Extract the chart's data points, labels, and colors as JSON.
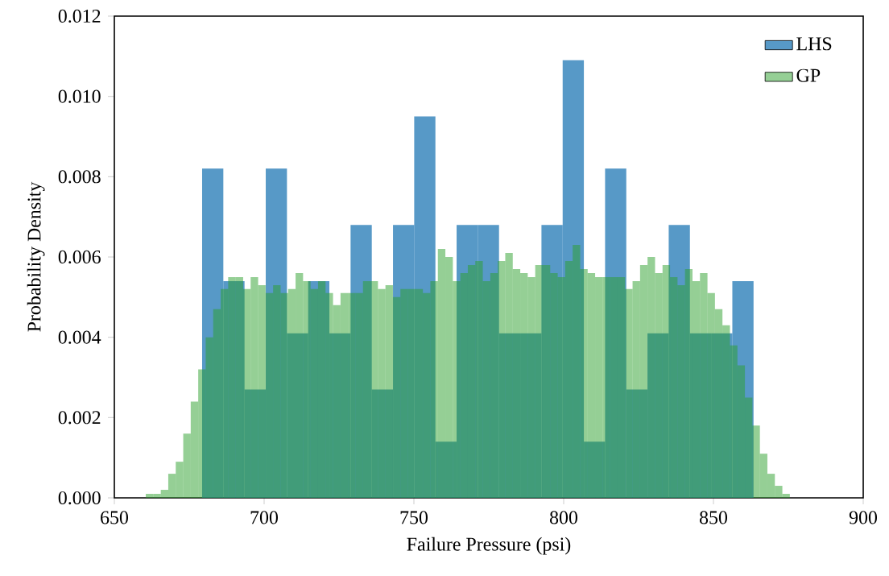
{
  "chart_data": {
    "type": "histogram",
    "xlabel": "Failure Pressure (psi)",
    "ylabel": "Probability Density",
    "xlim": [
      650,
      900
    ],
    "ylim": [
      0,
      0.012
    ],
    "xticks": [
      {
        "value": 650,
        "label": "650"
      },
      {
        "value": 700,
        "label": "700"
      },
      {
        "value": 750,
        "label": "750"
      },
      {
        "value": 800,
        "label": "800"
      },
      {
        "value": 850,
        "label": "850"
      },
      {
        "value": 900,
        "label": "900"
      }
    ],
    "yticks": [
      {
        "value": 0,
        "label": "0.000"
      },
      {
        "value": 0.002,
        "label": "0.002"
      },
      {
        "value": 0.004,
        "label": "0.004"
      },
      {
        "value": 0.006,
        "label": "0.006"
      },
      {
        "value": 0.008,
        "label": "0.008"
      },
      {
        "value": 0.01,
        "label": "0.010"
      },
      {
        "value": 0.012,
        "label": "0.012"
      }
    ],
    "legend": "top right",
    "bins": [
      679.3,
      686.38,
      693.46,
      700.54,
      707.62,
      714.7,
      721.78,
      728.86,
      735.94,
      743.02,
      750.1,
      757.18,
      764.26,
      771.34,
      778.42,
      785.5,
      792.58,
      799.66,
      806.74,
      813.82,
      820.9,
      827.98,
      835.06,
      842.14,
      849.22,
      856.3,
      863.38
    ],
    "series": [
      {
        "name": "LHS",
        "color": "#5799c7",
        "values": [
          0.0082,
          0.0054,
          0.0027,
          0.0082,
          0.0041,
          0.0054,
          0.0041,
          0.0068,
          0.0027,
          0.0068,
          0.0095,
          0.0014,
          0.0068,
          0.0068,
          0.0041,
          0.0041,
          0.0068,
          0.0109,
          0.0014,
          0.0082,
          0.0027,
          0.0041,
          0.0068,
          0.0041,
          0.0041,
          0.0054
        ]
      },
      {
        "name": "GP",
        "color": "#95cf95",
        "bins": [
          658,
          660.5,
          663,
          665.5,
          668,
          670.5,
          673,
          675.5,
          678,
          680.5,
          683,
          685.5,
          688,
          690.5,
          693,
          695.5,
          698,
          700.5,
          703,
          705.5,
          708,
          710.5,
          713,
          715.5,
          718,
          720.5,
          723,
          725.5,
          728,
          730.5,
          733,
          735.5,
          738,
          740.5,
          743,
          745.5,
          748,
          750.5,
          753,
          755.5,
          758,
          760.5,
          763,
          765.5,
          768,
          770.5,
          773,
          775.5,
          778,
          780.5,
          783,
          785.5,
          788,
          790.5,
          793,
          795.5,
          798,
          800.5,
          803,
          805.5,
          808,
          810.5,
          813,
          815.5,
          818,
          820.5,
          823,
          825.5,
          828,
          830.5,
          833,
          835.5,
          838,
          840.5,
          843,
          845.5,
          848,
          850.5,
          853,
          855.5,
          858,
          860.5,
          863,
          865.5,
          868,
          870.5,
          873,
          875.5
        ],
        "values": [
          0,
          0.0001,
          0.0001,
          0.0002,
          0.0006,
          0.0009,
          0.0016,
          0.0024,
          0.0032,
          0.004,
          0.0047,
          0.0052,
          0.0055,
          0.0055,
          0.0052,
          0.0055,
          0.0053,
          0.0051,
          0.0053,
          0.0051,
          0.0052,
          0.0056,
          0.0054,
          0.0052,
          0.0054,
          0.0051,
          0.0048,
          0.0051,
          0.0051,
          0.0051,
          0.0054,
          0.0054,
          0.0052,
          0.0053,
          0.005,
          0.0052,
          0.0052,
          0.0052,
          0.0051,
          0.0054,
          0.0062,
          0.006,
          0.0054,
          0.0056,
          0.0058,
          0.0059,
          0.0054,
          0.0056,
          0.0059,
          0.0061,
          0.0057,
          0.0056,
          0.0055,
          0.0058,
          0.0058,
          0.0056,
          0.0055,
          0.0059,
          0.0063,
          0.0057,
          0.0056,
          0.0055,
          0.0055,
          0.0055,
          0.0055,
          0.0052,
          0.0054,
          0.0058,
          0.006,
          0.0056,
          0.0058,
          0.0055,
          0.0053,
          0.0057,
          0.0054,
          0.0056,
          0.0051,
          0.0047,
          0.0043,
          0.0038,
          0.0033,
          0.0025,
          0.0018,
          0.0011,
          0.0006,
          0.0003,
          0.0001
        ]
      }
    ]
  }
}
